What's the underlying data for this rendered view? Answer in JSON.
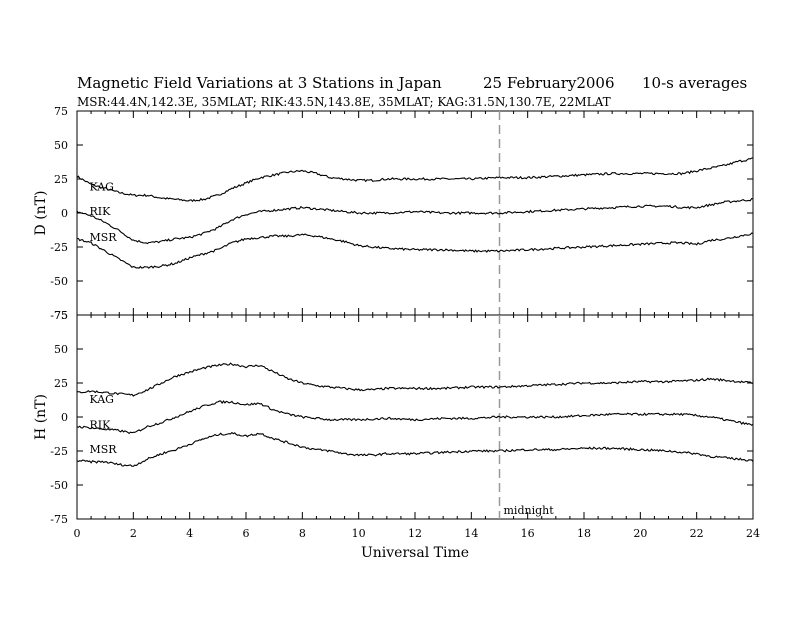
{
  "header": {
    "title": "Magnetic Field Variations at 3 Stations in Japan",
    "date": "25 February2006",
    "averaging": "10-s averages",
    "stations_line": "MSR:44.4N,142.3E, 35MLAT;  RIK:43.5N,143.8E, 35MLAT;  KAG:31.5N,130.7E, 22MLAT"
  },
  "chart_data": [
    {
      "type": "line",
      "panel": "top",
      "ylabel": "D (nT)",
      "xlim": [
        0,
        24
      ],
      "ylim": [
        -75,
        75
      ],
      "yticks": [
        -75,
        -50,
        -25,
        0,
        25,
        50,
        75
      ],
      "series": [
        {
          "name": "KAG",
          "label_pos": [
            0.3,
            15
          ],
          "x": [
            0,
            0.5,
            1,
            1.5,
            2,
            2.5,
            3,
            3.5,
            4,
            4.5,
            5,
            5.5,
            6,
            6.5,
            7,
            7.5,
            8,
            8.5,
            9,
            9.5,
            10,
            10.5,
            11,
            12,
            13,
            14,
            15,
            16,
            17,
            18,
            19,
            20,
            21,
            21.5,
            22,
            22.5,
            23,
            23.5,
            24
          ],
          "y": [
            27,
            21,
            18,
            15,
            13,
            13,
            11,
            10,
            9,
            10,
            13,
            18,
            22,
            26,
            28,
            30,
            31,
            29,
            26,
            25,
            24,
            24,
            25,
            25,
            25,
            25,
            26,
            26,
            27,
            28,
            29,
            29,
            29,
            29,
            31,
            33,
            35,
            38,
            40
          ]
        },
        {
          "name": "RIK",
          "label_pos": [
            0.3,
            -3
          ],
          "x": [
            0,
            0.5,
            1,
            1.5,
            2,
            2.5,
            3,
            3.5,
            4,
            4.5,
            5,
            5.5,
            6,
            6.5,
            7,
            7.5,
            8,
            8.5,
            9,
            9.5,
            10,
            11,
            12,
            13,
            14,
            15,
            16,
            17,
            18,
            19,
            20,
            21,
            21.5,
            22,
            22.5,
            23,
            23.5,
            24
          ],
          "y": [
            1,
            -2,
            -7,
            -13,
            -20,
            -22,
            -21,
            -19,
            -18,
            -15,
            -11,
            -5,
            -1,
            1,
            2,
            3,
            4,
            3,
            2,
            1,
            0,
            0,
            1,
            0,
            0,
            0,
            1,
            2,
            3,
            4,
            5,
            5,
            4,
            4,
            6,
            8,
            9,
            10
          ]
        },
        {
          "name": "MSR",
          "label_pos": [
            0.3,
            -22
          ],
          "x": [
            0,
            0.5,
            1,
            1.5,
            2,
            2.5,
            3,
            3.5,
            4,
            4.5,
            5,
            5.5,
            6,
            6.5,
            7,
            7.5,
            8,
            8.5,
            9,
            9.5,
            10,
            11,
            12,
            13,
            14,
            15,
            16,
            17,
            18,
            19,
            20,
            21,
            21.5,
            22,
            22.5,
            23,
            23.5,
            24
          ],
          "y": [
            -19,
            -22,
            -28,
            -34,
            -40,
            -40,
            -39,
            -37,
            -33,
            -30,
            -27,
            -22,
            -19,
            -18,
            -17,
            -17,
            -16,
            -17,
            -19,
            -21,
            -24,
            -26,
            -27,
            -27,
            -28,
            -28,
            -27,
            -26,
            -25,
            -24,
            -23,
            -22,
            -22,
            -23,
            -20,
            -19,
            -17,
            -15
          ]
        }
      ]
    },
    {
      "type": "line",
      "panel": "bottom",
      "ylabel": "H (nT)",
      "xlabel": "Universal Time",
      "xlim": [
        0,
        24
      ],
      "ylim": [
        -75,
        75
      ],
      "xticks": [
        0,
        2,
        4,
        6,
        8,
        10,
        12,
        14,
        16,
        18,
        20,
        22,
        24
      ],
      "yticks": [
        -75,
        -50,
        -25,
        0,
        25,
        50,
        75
      ],
      "annotation": {
        "text": "midnight",
        "x": 15
      },
      "series": [
        {
          "name": "KAG",
          "label_pos": [
            0.3,
            9
          ],
          "x": [
            0,
            0.5,
            1,
            1.5,
            2,
            2.5,
            3,
            3.5,
            4,
            4.5,
            5,
            5.5,
            6,
            6.5,
            7,
            7.5,
            8,
            8.5,
            9,
            9.5,
            10,
            10.5,
            11,
            12,
            13,
            14,
            15,
            16,
            17,
            18,
            19,
            20,
            21,
            22,
            22.5,
            23,
            23.5,
            24
          ],
          "y": [
            18,
            19,
            18,
            17,
            16,
            20,
            25,
            30,
            33,
            36,
            38,
            39,
            37,
            38,
            33,
            28,
            25,
            23,
            22,
            21,
            20,
            20,
            21,
            21,
            21,
            22,
            22,
            23,
            24,
            25,
            25,
            26,
            26,
            27,
            28,
            27,
            26,
            25
          ]
        },
        {
          "name": "RIK",
          "label_pos": [
            0.3,
            -10
          ],
          "x": [
            0,
            0.5,
            1,
            1.5,
            2,
            2.5,
            3,
            3.5,
            4,
            4.5,
            5,
            5.5,
            6,
            6.5,
            7,
            7.5,
            8,
            8.5,
            9,
            9.5,
            10,
            11,
            12,
            13,
            14,
            15,
            16,
            17,
            18,
            19,
            20,
            21,
            21.5,
            22,
            22.5,
            23,
            23.5,
            24
          ],
          "y": [
            -7,
            -8,
            -9,
            -10,
            -12,
            -7,
            -4,
            0,
            4,
            8,
            11,
            11,
            9,
            10,
            5,
            2,
            0,
            -1,
            -2,
            -2,
            -2,
            -1,
            -2,
            -1,
            -1,
            0,
            0,
            0,
            1,
            2,
            2,
            2,
            2,
            1,
            0,
            -2,
            -4,
            -6
          ]
        },
        {
          "name": "MSR",
          "label_pos": [
            0.3,
            -28
          ],
          "x": [
            0,
            0.5,
            1,
            1.5,
            2,
            2.5,
            3,
            3.5,
            4,
            4.5,
            5,
            5.5,
            6,
            6.5,
            7,
            7.5,
            8,
            8.5,
            9,
            9.5,
            10,
            10.5,
            11,
            12,
            13,
            14,
            15,
            16,
            17,
            18,
            19,
            20,
            21,
            21.5,
            22,
            22.5,
            23,
            23.5,
            24
          ],
          "y": [
            -32,
            -33,
            -33,
            -35,
            -36,
            -31,
            -27,
            -24,
            -20,
            -16,
            -13,
            -12,
            -14,
            -12,
            -16,
            -19,
            -22,
            -24,
            -25,
            -27,
            -28,
            -28,
            -27,
            -27,
            -26,
            -25,
            -25,
            -24,
            -24,
            -23,
            -23,
            -24,
            -25,
            -26,
            -27,
            -29,
            -30,
            -31,
            -32
          ]
        }
      ]
    }
  ]
}
